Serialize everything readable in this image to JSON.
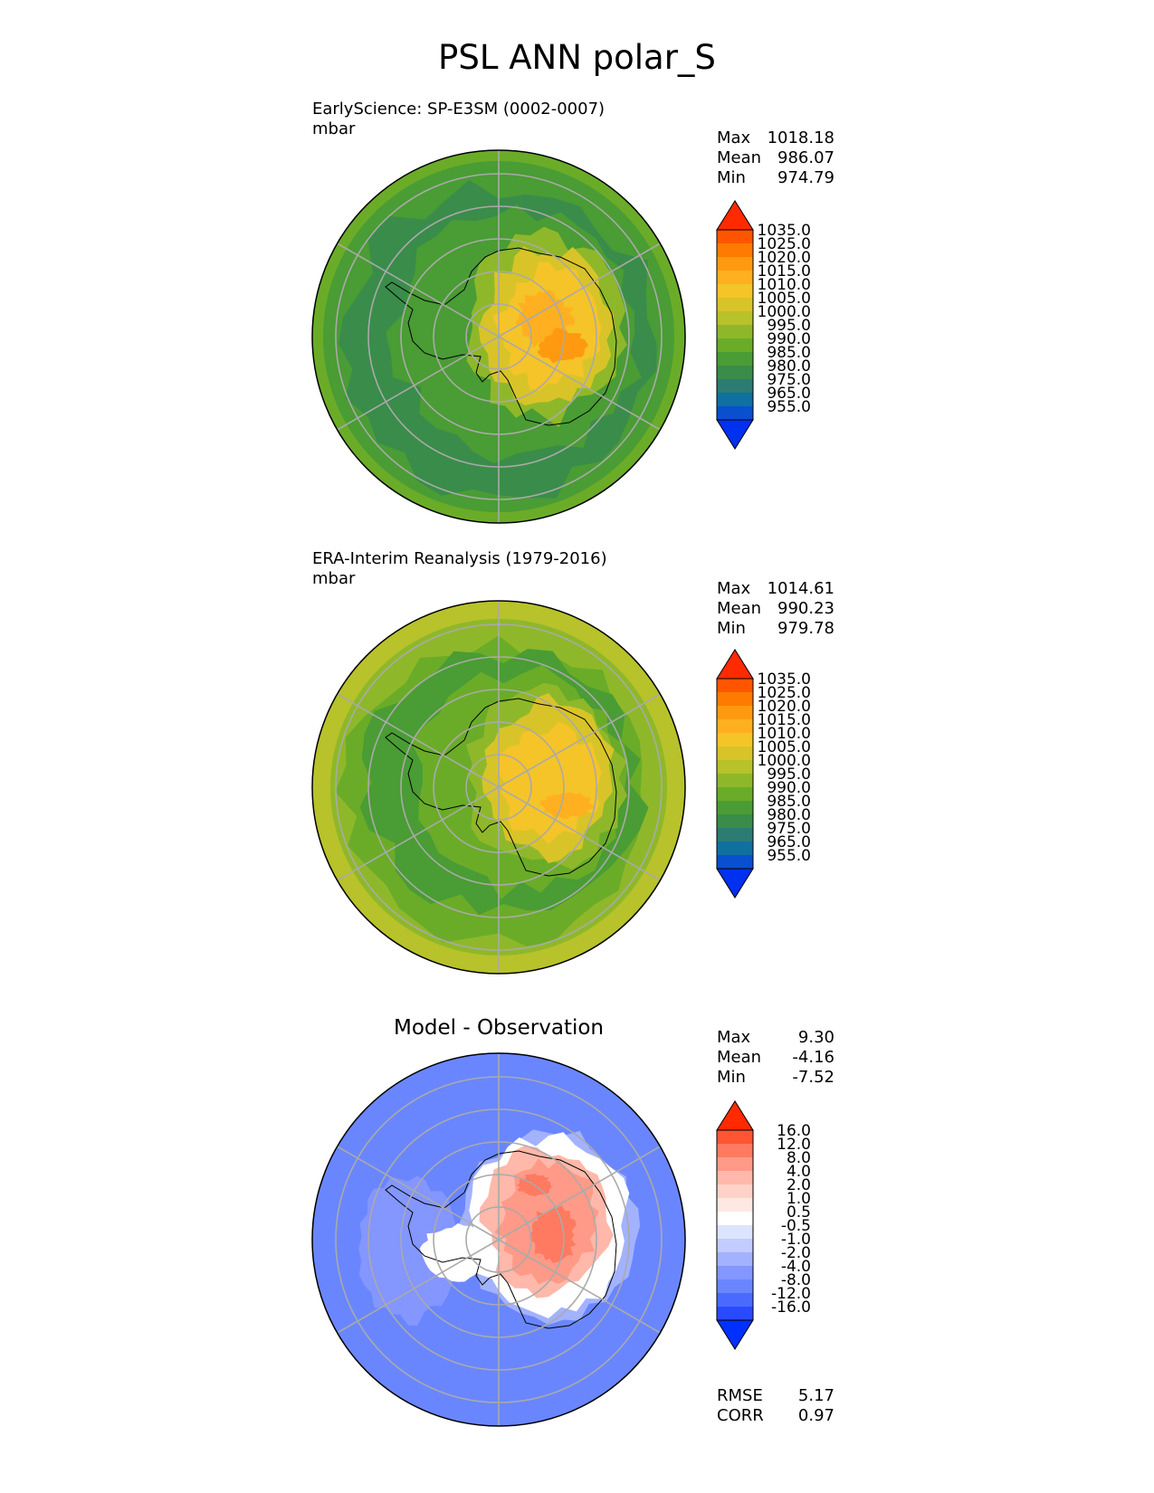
{
  "figure": {
    "title": "PSL ANN polar_S"
  },
  "panels": [
    {
      "id": "model",
      "label": "EarlyScience: SP-E3SM (0002-0007)",
      "units": "mbar",
      "stats": [
        {
          "label": "Max",
          "value": "1018.18"
        },
        {
          "label": "Mean",
          "value": "986.07"
        },
        {
          "label": "Min",
          "value": "974.79"
        }
      ],
      "colorbar": {
        "tick_labels": [
          "1035.0",
          "1025.0",
          "1020.0",
          "1015.0",
          "1010.0",
          "1005.0",
          "1000.0",
          "995.0",
          "990.0",
          "985.0",
          "980.0",
          "975.0",
          "965.0",
          "955.0"
        ],
        "colors": [
          "#ff2a00",
          "#ff5500",
          "#ff7a00",
          "#ff9a10",
          "#ffb020",
          "#f5c428",
          "#d8c428",
          "#b8c22a",
          "#8eb82a",
          "#6aac28",
          "#4a9c34",
          "#3a8c4a",
          "#2c7c74",
          "#1070a0",
          "#0850d0",
          "#0030f0"
        ]
      }
    },
    {
      "id": "obs",
      "label": "ERA-Interim Reanalysis (1979-2016)",
      "units": "mbar",
      "stats": [
        {
          "label": "Max",
          "value": "1014.61"
        },
        {
          "label": "Mean",
          "value": "990.23"
        },
        {
          "label": "Min",
          "value": "979.78"
        }
      ],
      "colorbar": {
        "tick_labels": [
          "1035.0",
          "1025.0",
          "1020.0",
          "1015.0",
          "1010.0",
          "1005.0",
          "1000.0",
          "995.0",
          "990.0",
          "985.0",
          "980.0",
          "975.0",
          "965.0",
          "955.0"
        ],
        "colors": [
          "#ff2a00",
          "#ff5500",
          "#ff7a00",
          "#ff9a10",
          "#ffb020",
          "#f5c428",
          "#d8c428",
          "#b8c22a",
          "#8eb82a",
          "#6aac28",
          "#4a9c34",
          "#3a8c4a",
          "#2c7c74",
          "#1070a0",
          "#0850d0",
          "#0030f0"
        ]
      }
    },
    {
      "id": "diff",
      "title": "Model - Observation",
      "stats": [
        {
          "label": "Max",
          "value": "9.30"
        },
        {
          "label": "Mean",
          "value": "-4.16"
        },
        {
          "label": "Min",
          "value": "-7.52"
        }
      ],
      "metrics": [
        {
          "label": "RMSE",
          "value": "5.17"
        },
        {
          "label": "CORR",
          "value": "0.97"
        }
      ],
      "colorbar": {
        "tick_labels": [
          "16.0",
          "12.0",
          "8.0",
          "4.0",
          "2.0",
          "1.0",
          "0.5",
          "-0.5",
          "-1.0",
          "-2.0",
          "-4.0",
          "-8.0",
          "-12.0",
          "-16.0"
        ],
        "colors": [
          "#ff2a00",
          "#ff5533",
          "#ff7a60",
          "#ff9a88",
          "#ffb8aa",
          "#ffd2c8",
          "#ffe8e2",
          "#ffffff",
          "#dde4ff",
          "#c2ccff",
          "#a2b2ff",
          "#8496ff",
          "#6a86ff",
          "#4a6aff",
          "#2a4aff",
          "#0030ff"
        ]
      }
    }
  ],
  "chart_data": [
    {
      "type": "heatmap",
      "title": "EarlyScience: SP-E3SM (0002-0007)",
      "units": "mbar",
      "projection": "south polar stereographic",
      "levels": [
        955,
        965,
        975,
        980,
        985,
        990,
        995,
        1000,
        1005,
        1010,
        1015,
        1020,
        1025,
        1035
      ],
      "max": 1018.18,
      "mean": 986.07,
      "min": 974.79
    },
    {
      "type": "heatmap",
      "title": "ERA-Interim Reanalysis (1979-2016)",
      "units": "mbar",
      "projection": "south polar stereographic",
      "levels": [
        955,
        965,
        975,
        980,
        985,
        990,
        995,
        1000,
        1005,
        1010,
        1015,
        1020,
        1025,
        1035
      ],
      "max": 1014.61,
      "mean": 990.23,
      "min": 979.78
    },
    {
      "type": "heatmap",
      "title": "Model - Observation",
      "projection": "south polar stereographic",
      "levels": [
        -16,
        -12,
        -8,
        -4,
        -2,
        -1,
        -0.5,
        0.5,
        1,
        2,
        4,
        8,
        12,
        16
      ],
      "max": 9.3,
      "mean": -4.16,
      "min": -7.52,
      "rmse": 5.17,
      "corr": 0.97
    }
  ]
}
